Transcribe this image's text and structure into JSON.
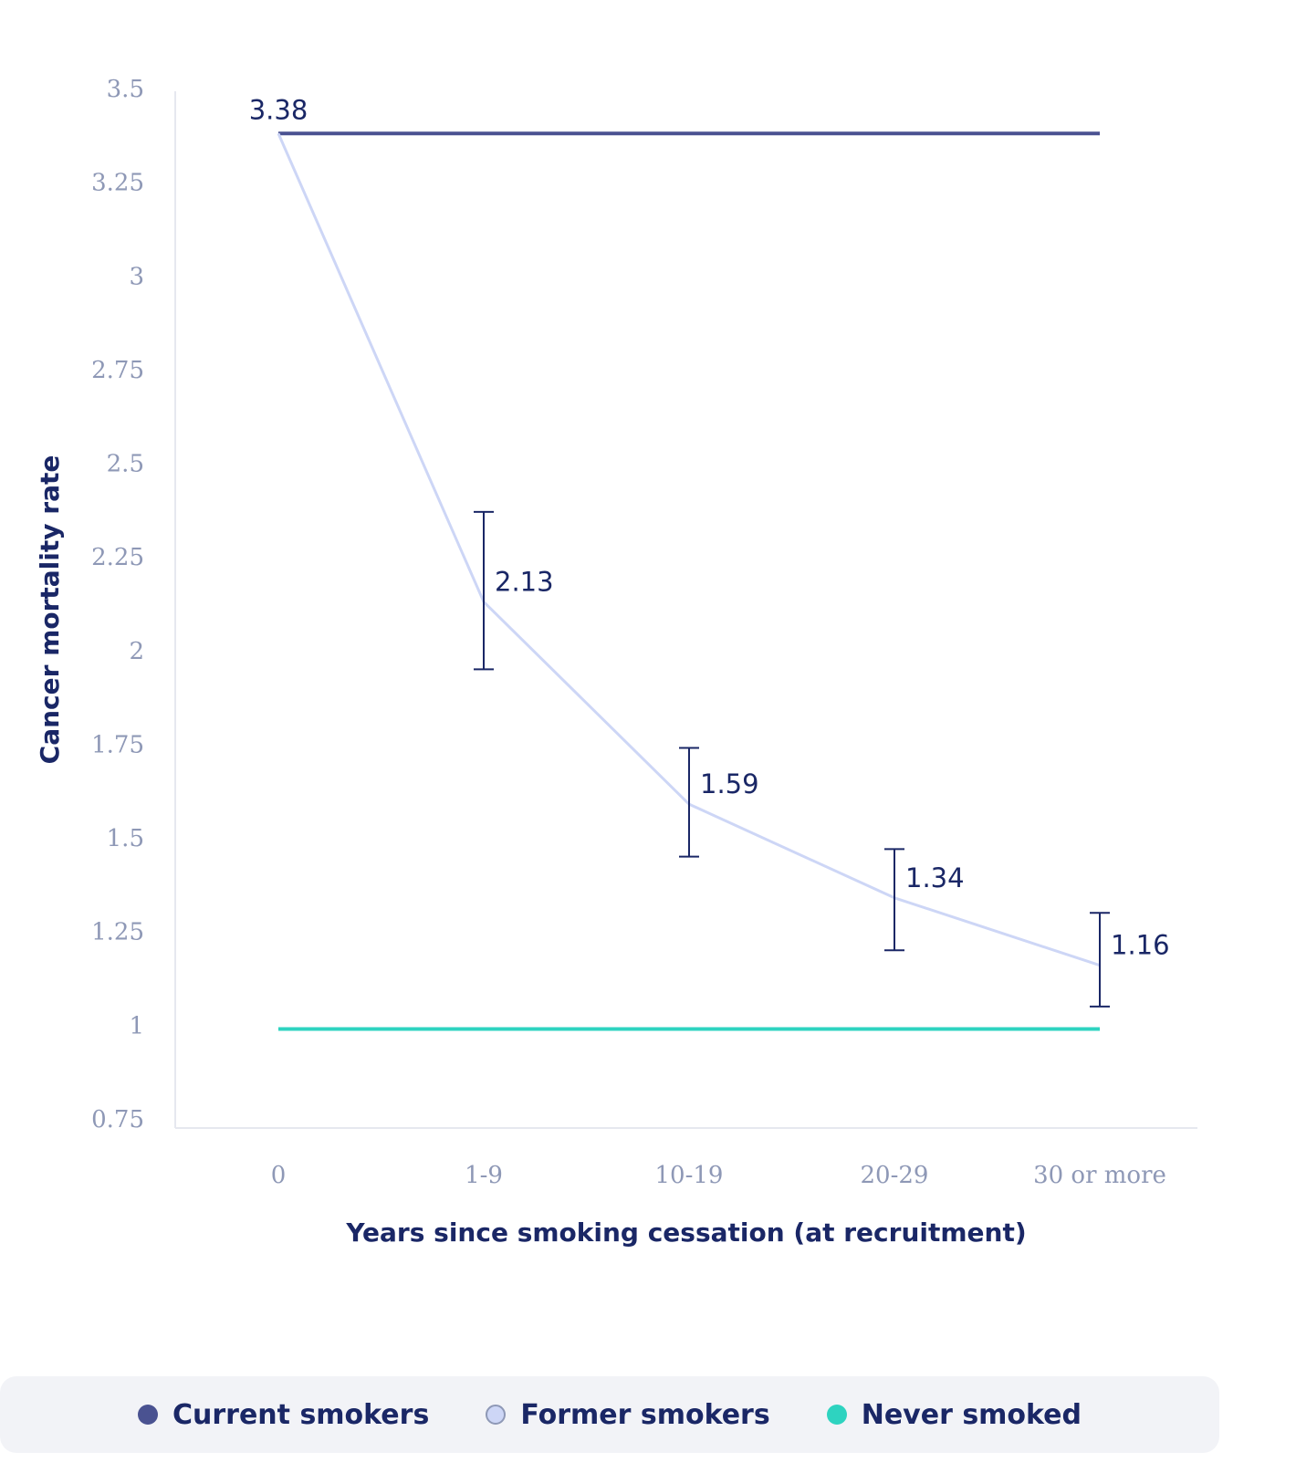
{
  "chart_data": {
    "type": "line",
    "title": "",
    "xlabel": "Years since smoking cessation (at recruitment)",
    "ylabel": "Cancer mortality rate",
    "categories": [
      "0",
      "1-9",
      "10-19",
      "20-29",
      "30 or more"
    ],
    "ylim": [
      0.75,
      3.5
    ],
    "yticks": [
      "3.5",
      "3.25",
      "3",
      "2.75",
      "2.5",
      "2.25",
      "2",
      "1.75",
      "1.5",
      "1.25",
      "1",
      "0.75"
    ],
    "grid": false,
    "legend_position": "bottom",
    "series": [
      {
        "name": "Current smokers",
        "color": "#4a5291",
        "values": [
          3.38,
          3.38,
          3.38,
          3.38,
          3.38
        ]
      },
      {
        "name": "Former smokers",
        "color": "#cdd6f6",
        "values": [
          3.38,
          2.13,
          1.59,
          1.34,
          1.16
        ],
        "error_bars": [
          null,
          [
            1.95,
            2.37
          ],
          [
            1.45,
            1.74
          ],
          [
            1.2,
            1.47
          ],
          [
            1.05,
            1.3
          ]
        ],
        "labels": [
          "3.38",
          "2.13",
          "1.59",
          "1.34",
          "1.16"
        ]
      },
      {
        "name": "Never smoked",
        "color": "#2ed3c0",
        "values": [
          0.99,
          0.99,
          0.99,
          0.99,
          0.99
        ]
      }
    ]
  },
  "legend": {
    "items": [
      {
        "label": "Current smokers",
        "color": "#4a5291",
        "hollow": false
      },
      {
        "label": "Former smokers",
        "color": "#cdd6f6",
        "hollow": true
      },
      {
        "label": "Never smoked",
        "color": "#2ed3c0",
        "hollow": false
      }
    ]
  }
}
